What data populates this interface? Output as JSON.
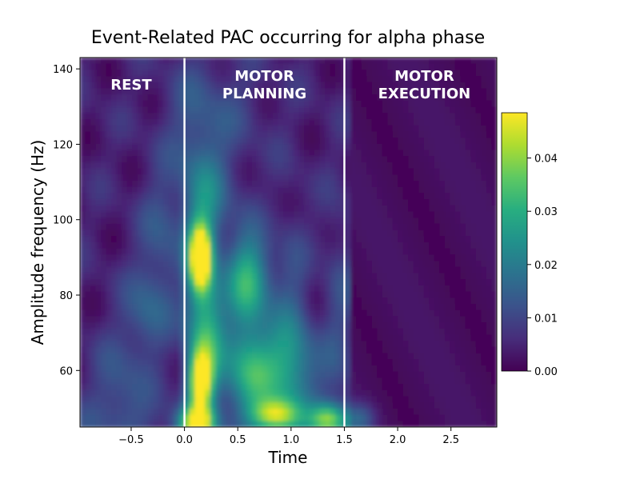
{
  "chart_data": {
    "type": "heatmap",
    "title": "Event-Related PAC occurring for alpha phase",
    "xlabel": "Time",
    "ylabel": "Amplitude frequency (Hz)",
    "xlim": [
      -0.98,
      2.93
    ],
    "ylim": [
      45,
      143
    ],
    "xticks": [
      -0.5,
      0.0,
      0.5,
      1.0,
      1.5,
      2.0,
      2.5
    ],
    "xtick_labels": [
      "−0.5",
      "0.0",
      "0.5",
      "1.0",
      "1.5",
      "2.0",
      "2.5"
    ],
    "yticks": [
      60,
      80,
      100,
      120,
      140
    ],
    "ytick_labels": [
      "60",
      "80",
      "100",
      "120",
      "140"
    ],
    "colormap": "viridis",
    "clim": [
      0.0,
      0.0485
    ],
    "colorbar_ticks": [
      0.0,
      0.01,
      0.02,
      0.03,
      0.04
    ],
    "colorbar_tick_labels": [
      "0.00",
      "0.01",
      "0.02",
      "0.03",
      "0.04"
    ],
    "event_lines": [
      0.0,
      1.5
    ],
    "event_line_color": "#ffffff",
    "grid": false,
    "annotations": [
      {
        "lines": [
          "REST"
        ],
        "x": -0.5,
        "y": 136
      },
      {
        "lines": [
          "MOTOR",
          "PLANNING"
        ],
        "x": 0.75,
        "y": 136
      },
      {
        "lines": [
          "MOTOR",
          "EXECUTION"
        ],
        "x": 2.25,
        "y": 136
      }
    ],
    "hotspots": [
      {
        "t": 0.15,
        "f": 90,
        "st": 0.07,
        "sf": 6,
        "a": 0.05
      },
      {
        "t": 0.15,
        "f": 57,
        "st": 0.08,
        "sf": 6,
        "a": 0.042
      },
      {
        "t": 0.12,
        "f": 46,
        "st": 0.12,
        "sf": 3,
        "a": 0.036
      },
      {
        "t": 0.22,
        "f": 72,
        "st": 0.12,
        "sf": 12,
        "a": 0.022
      },
      {
        "t": 0.62,
        "f": 84,
        "st": 0.15,
        "sf": 8,
        "a": 0.022
      },
      {
        "t": 0.65,
        "f": 60,
        "st": 0.2,
        "sf": 8,
        "a": 0.022
      },
      {
        "t": 0.85,
        "f": 48,
        "st": 0.15,
        "sf": 3,
        "a": 0.03
      },
      {
        "t": 1.35,
        "f": 47,
        "st": 0.12,
        "sf": 3,
        "a": 0.03
      },
      {
        "t": 1.0,
        "f": 60,
        "st": 0.2,
        "sf": 10,
        "a": 0.015
      },
      {
        "t": 0.2,
        "f": 105,
        "st": 0.15,
        "sf": 10,
        "a": 0.015
      },
      {
        "t": -0.35,
        "f": 75,
        "st": 0.15,
        "sf": 8,
        "a": 0.01
      },
      {
        "t": -0.2,
        "f": 95,
        "st": 0.15,
        "sf": 12,
        "a": 0.008
      },
      {
        "t": -0.6,
        "f": 55,
        "st": 0.18,
        "sf": 10,
        "a": 0.008
      },
      {
        "t": 0.1,
        "f": 125,
        "st": 0.2,
        "sf": 12,
        "a": 0.006
      },
      {
        "t": 1.65,
        "f": 47,
        "st": 0.1,
        "sf": 3,
        "a": 0.012
      },
      {
        "t": 0.4,
        "f": 130,
        "st": 0.3,
        "sf": 10,
        "a": 0.004
      }
    ]
  }
}
